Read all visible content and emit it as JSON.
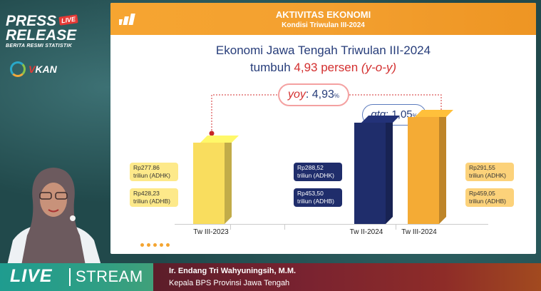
{
  "branding": {
    "press": "PRESS",
    "release": "RELEASE",
    "live_badge": "LIVE",
    "subtitle": "BERITA RESMI STATISTIK",
    "vkan_v": "V",
    "vkan_rest": "KAN"
  },
  "slide": {
    "header_title": "AKTIVITAS EKONOMI",
    "header_subtitle": "Kondisi Triwulan III-2024",
    "main_title": "Ekonomi Jawa Tengah Triwulan III-2024",
    "main_sub_prefix": "tumbuh ",
    "main_sub_value": "4,93 persen",
    "main_sub_suffix": "(y-o-y)",
    "yoy_label": "yoy",
    "yoy_value": ": 4,93",
    "yoy_pct": "%",
    "qtq_label": "qtq",
    "qtq_value": ": 1,05",
    "qtq_pct": "%"
  },
  "chart_data": {
    "type": "bar",
    "categories": [
      "Tw III-2023",
      "Tw II-2024",
      "Tw III-2024"
    ],
    "series": [
      {
        "values": [
          277.86,
          288.52,
          291.55
        ]
      }
    ],
    "boxes": [
      {
        "adhk": "Rp277.86",
        "adhk_unit": "triliun (ADHK)",
        "adhb": "Rp428,23",
        "adhb_unit": "triliun (ADHB)"
      },
      {
        "adhk": "Rp288,52",
        "adhk_unit": "triliun (ADHK)",
        "adhb": "Rp453,50",
        "adhb_unit": "triliun (ADHB)"
      },
      {
        "adhk": "Rp291,55",
        "adhk_unit": "triliun (ADHK)",
        "adhb": "Rp459,05",
        "adhb_unit": "triliun (ADHB)"
      }
    ],
    "colors": [
      "#f9dd5e",
      "#1f2d6b",
      "#f4ab35"
    ],
    "growth_yoy": 4.93,
    "growth_qtq": 1.05
  },
  "banner": {
    "live": "LIVE",
    "stream": "STREAM",
    "speaker_name": "Ir. Endang Tri Wahyuningsih, M.M.",
    "speaker_role": "Kepala BPS Provinsi Jawa Tengah"
  }
}
